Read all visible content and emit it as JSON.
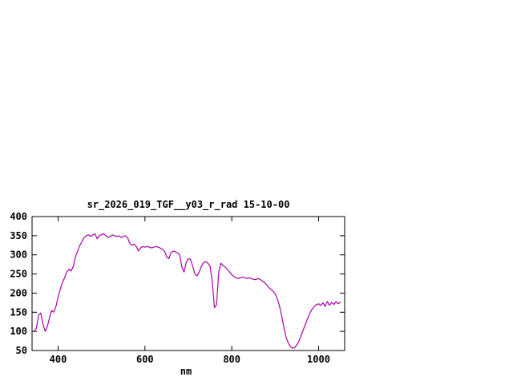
{
  "chart_data": {
    "type": "line",
    "title": "sr_2026_019_TGF__y03_r_rad 15-10-00",
    "xlabel": "nm",
    "ylabel": "",
    "xlim": [
      340,
      1060
    ],
    "ylim": [
      50,
      400
    ],
    "xticks": [
      400,
      600,
      800,
      1000
    ],
    "yticks": [
      50,
      100,
      150,
      200,
      250,
      300,
      350,
      400
    ],
    "grid": false,
    "legend": "none",
    "line_color": "#aa00aa",
    "axis_color": "#000000",
    "background_color": "#ffffff",
    "series": [
      {
        "name": "sr_2026_019_TGF__y03_r_rad",
        "x": [
          345,
          350,
          355,
          360,
          365,
          370,
          375,
          380,
          385,
          390,
          395,
          400,
          405,
          410,
          415,
          420,
          425,
          430,
          435,
          440,
          445,
          450,
          455,
          460,
          465,
          470,
          475,
          480,
          485,
          490,
          495,
          500,
          505,
          510,
          515,
          520,
          525,
          530,
          535,
          540,
          545,
          550,
          555,
          560,
          565,
          570,
          575,
          580,
          585,
          590,
          595,
          600,
          605,
          610,
          615,
          620,
          625,
          630,
          635,
          640,
          645,
          650,
          655,
          660,
          665,
          670,
          675,
          680,
          685,
          690,
          695,
          700,
          705,
          710,
          715,
          720,
          725,
          730,
          735,
          740,
          745,
          750,
          755,
          760,
          765,
          770,
          775,
          780,
          785,
          790,
          795,
          800,
          805,
          810,
          815,
          820,
          825,
          830,
          835,
          840,
          845,
          850,
          855,
          860,
          865,
          870,
          875,
          880,
          885,
          890,
          895,
          900,
          905,
          910,
          915,
          920,
          925,
          930,
          935,
          940,
          945,
          950,
          955,
          960,
          965,
          970,
          975,
          980,
          985,
          990,
          995,
          1000,
          1005,
          1010,
          1015,
          1020,
          1025,
          1030,
          1035,
          1040,
          1045,
          1050
        ],
        "y": [
          100,
          108,
          142,
          148,
          120,
          100,
          112,
          135,
          155,
          150,
          165,
          190,
          210,
          228,
          240,
          255,
          262,
          258,
          270,
          295,
          310,
          325,
          335,
          345,
          350,
          352,
          348,
          352,
          355,
          342,
          350,
          353,
          355,
          350,
          345,
          348,
          352,
          350,
          348,
          350,
          345,
          348,
          350,
          345,
          330,
          325,
          328,
          322,
          310,
          318,
          322,
          320,
          322,
          320,
          318,
          320,
          322,
          320,
          318,
          315,
          310,
          295,
          290,
          305,
          310,
          308,
          305,
          300,
          268,
          255,
          280,
          290,
          288,
          270,
          250,
          245,
          255,
          270,
          280,
          282,
          278,
          270,
          230,
          162,
          170,
          255,
          278,
          272,
          268,
          262,
          255,
          248,
          243,
          240,
          238,
          240,
          242,
          240,
          238,
          240,
          238,
          236,
          235,
          238,
          236,
          232,
          228,
          222,
          215,
          210,
          205,
          198,
          185,
          165,
          140,
          110,
          85,
          70,
          60,
          56,
          58,
          65,
          75,
          90,
          105,
          120,
          135,
          148,
          158,
          165,
          170,
          172,
          168,
          175,
          165,
          178,
          168,
          176,
          170,
          178,
          172,
          176
        ]
      }
    ]
  }
}
